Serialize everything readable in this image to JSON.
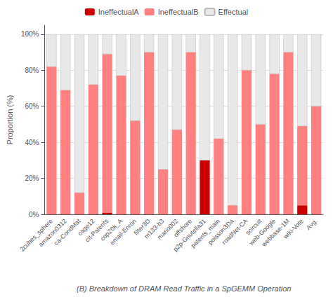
{
  "chart_data": {
    "type": "bar",
    "stacked": true,
    "xlabel": "(B) Breakdown of DRAM Read Traffic in a SpGEMM Operation",
    "ylabel": "Proportion (%)",
    "categories": [
      "2cubes_sphere",
      "amazon0312",
      "ca-CondMat",
      "cage12",
      "cit-Patents",
      "cop20k_A",
      "email-Enron",
      "filter3D",
      "m133-b3",
      "mario002",
      "offshore",
      "p2p-Gnutella31",
      "patents_main",
      "poisson3Da",
      "roadNet-CA",
      "scircuit",
      "web-Google",
      "webbase-1M",
      "wiki-Vote",
      "Avg."
    ],
    "series": [
      {
        "name": "IneffectualA",
        "color": "#CC0000",
        "values": [
          0,
          0,
          0,
          0,
          1,
          0,
          0,
          0,
          0,
          0,
          0,
          30,
          0,
          0,
          0,
          0,
          0,
          0,
          5,
          0
        ]
      },
      {
        "name": "IneffectualB",
        "color": "#FF8080",
        "values": [
          82,
          69,
          12,
          72,
          88,
          77,
          52,
          90,
          25,
          47,
          90,
          0,
          42,
          5,
          80,
          50,
          78,
          90,
          44,
          60
        ]
      },
      {
        "name": "Effectual",
        "color": "#E8E8E8",
        "values": [
          18,
          31,
          88,
          28,
          11,
          23,
          48,
          10,
          75,
          53,
          10,
          70,
          58,
          95,
          20,
          50,
          22,
          10,
          51,
          40
        ]
      }
    ],
    "ylim": [
      0,
      105
    ],
    "yticks": [
      {
        "value": 0,
        "label": "0%"
      },
      {
        "value": 20,
        "label": "20%"
      },
      {
        "value": 40,
        "label": "40%"
      },
      {
        "value": 60,
        "label": "60%"
      },
      {
        "value": 80,
        "label": "80%"
      },
      {
        "value": 100,
        "label": "100%"
      }
    ],
    "grid": true,
    "legend": "top"
  }
}
